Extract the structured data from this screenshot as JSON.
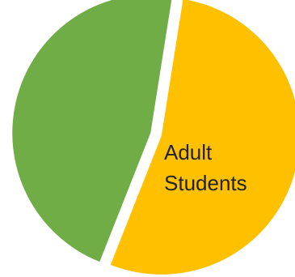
{
  "chart_data": {
    "type": "pie",
    "exploded": true,
    "slices": [
      {
        "value": 53.5,
        "color": "#FFC000",
        "label_lines": [
          "Adult",
          "Students"
        ]
      },
      {
        "value": 46.5,
        "color": "#70AD47",
        "label_lines": []
      }
    ],
    "legend": "none"
  }
}
